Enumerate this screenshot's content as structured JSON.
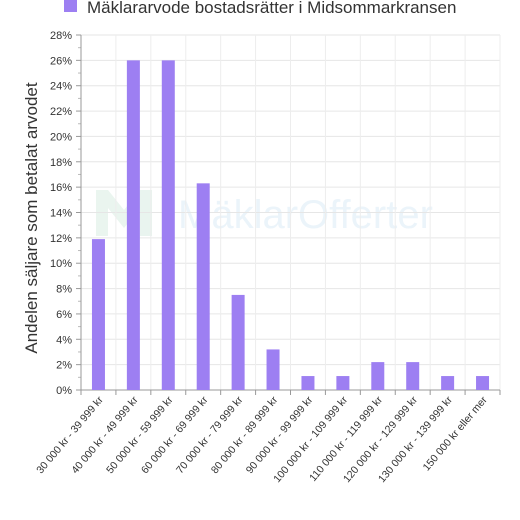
{
  "chart_data": {
    "type": "bar",
    "title": "",
    "legend": "Mäklararvode bostadsrätter i Midsommarkransen",
    "legend_position": "top",
    "ylabel": "Andelen säljare som betalat arvodet",
    "xlabel": "",
    "ylim": [
      0,
      28
    ],
    "ytick_step": 2,
    "ytick_suffix": "%",
    "grid": true,
    "categories": [
      "30 000 kr - 39 999 kr",
      "40 000 kr - 49 999 kr",
      "50 000 kr - 59 999 kr",
      "60 000 kr - 69 999 kr",
      "70 000 kr - 79 999 kr",
      "80 000 kr - 89 999 kr",
      "90 000 kr - 99 999 kr",
      "100 000 kr - 109 999 kr",
      "110 000 kr - 119 999 kr",
      "120 000 kr - 129 999 kr",
      "130 000 kr - 139 999 kr",
      "150 000 kr eller mer"
    ],
    "series": [
      {
        "name": "Mäklararvode bostadsrätter i Midsommarkransen",
        "values": [
          11.9,
          26.0,
          26.0,
          16.3,
          7.5,
          3.2,
          1.1,
          1.1,
          2.2,
          2.2,
          1.1,
          1.1
        ]
      }
    ],
    "bar_color": "#9d7ff2",
    "watermark": "MäklarOfferter"
  }
}
